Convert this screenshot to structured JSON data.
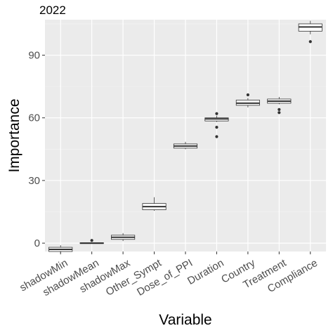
{
  "chart_data": {
    "type": "boxplot",
    "title": "2022",
    "xlabel": "Variable",
    "ylabel": "Importance",
    "ylim": [
      -4,
      107
    ],
    "yticks": [
      0,
      30,
      60,
      90
    ],
    "grid": true,
    "categories": [
      "shadowMin",
      "shadowMean",
      "shadowMax",
      "Other_Sympt",
      "Dose_of_PPI",
      "Duration",
      "Country",
      "Treatment",
      "Compliance"
    ],
    "boxes": [
      {
        "category": "shadowMin",
        "min": -4.5,
        "q1": -4.0,
        "median": -3.0,
        "q3": -2.0,
        "max": -1.0,
        "outliers": []
      },
      {
        "category": "shadowMean",
        "min": -0.3,
        "q1": -0.2,
        "median": 0.0,
        "q3": 0.2,
        "max": 0.4,
        "outliers": [
          1.3
        ]
      },
      {
        "category": "shadowMax",
        "min": 1.0,
        "q1": 1.8,
        "median": 2.8,
        "q3": 3.8,
        "max": 4.8,
        "outliers": []
      },
      {
        "category": "Other_Sympt",
        "min": 15.5,
        "q1": 16.0,
        "median": 17.5,
        "q3": 19.0,
        "max": 22.0,
        "outliers": []
      },
      {
        "category": "Dose_of_PPI",
        "min": 45.0,
        "q1": 45.5,
        "median": 46.5,
        "q3": 47.5,
        "max": 48.5,
        "outliers": []
      },
      {
        "category": "Duration",
        "min": 58.0,
        "q1": 58.5,
        "median": 59.5,
        "q3": 60.0,
        "max": 61.0,
        "outliers": [
          62.0,
          55.5,
          51.0
        ]
      },
      {
        "category": "Country",
        "min": 65.0,
        "q1": 66.0,
        "median": 67.0,
        "q3": 68.5,
        "max": 69.5,
        "outliers": [
          71.0
        ]
      },
      {
        "category": "Treatment",
        "min": 66.5,
        "q1": 67.0,
        "median": 68.0,
        "q3": 69.0,
        "max": 70.0,
        "outliers": [
          64.0,
          62.5
        ]
      },
      {
        "category": "Compliance",
        "min": 100.0,
        "q1": 101.5,
        "median": 103.5,
        "q3": 105.0,
        "max": 106.5,
        "outliers": [
          96.5
        ]
      }
    ]
  },
  "colors": {
    "panel_background": "#ebebeb",
    "grid_major": "#ffffff",
    "grid_minor": "#f5f5f5",
    "box_fill": "#ffffff",
    "box_stroke": "#333333",
    "tick_label": "#4d4d4d",
    "tick_mark": "#333333"
  }
}
